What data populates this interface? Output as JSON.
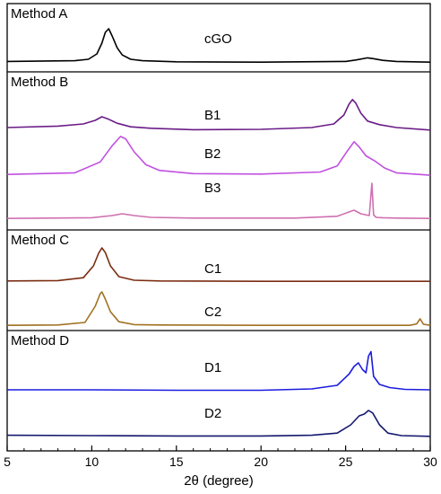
{
  "chart_data": {
    "type": "line",
    "xlabel": "2θ (degree)",
    "xlim": [
      5,
      30
    ],
    "xticks": [
      5,
      10,
      15,
      20,
      25,
      30
    ],
    "tick_labels": [
      "5",
      "10",
      "15",
      "20",
      "25",
      "30"
    ],
    "panels": [
      {
        "label": "Method A",
        "traces": [
          {
            "label": "cGO",
            "color": "#000000",
            "baseline": 0.02,
            "x": [
              5,
              9,
              9.8,
              10.3,
              10.6,
              10.8,
              11.0,
              11.2,
              11.5,
              11.8,
              12.3,
              13,
              15,
              20,
              25,
              25.6,
              26.3,
              26.6,
              27.2,
              28,
              30
            ],
            "y": [
              0.04,
              0.06,
              0.1,
              0.25,
              0.55,
              0.85,
              0.95,
              0.75,
              0.42,
              0.22,
              0.1,
              0.06,
              0.03,
              0.02,
              0.04,
              0.08,
              0.14,
              0.12,
              0.07,
              0.04,
              0.02
            ]
          }
        ]
      },
      {
        "label": "Method B",
        "traces": [
          {
            "label": "B1",
            "color": "#6a1c87",
            "baseline": 0.05,
            "x": [
              5,
              8,
              9.5,
              10.2,
              10.6,
              11.0,
              11.5,
              12.3,
              13.5,
              16,
              20,
              23,
              24.3,
              24.9,
              25.2,
              25.4,
              25.6,
              25.9,
              26.3,
              27,
              28,
              30
            ],
            "y": [
              0.1,
              0.14,
              0.2,
              0.3,
              0.4,
              0.33,
              0.22,
              0.12,
              0.08,
              0.04,
              0.05,
              0.1,
              0.2,
              0.45,
              0.75,
              0.88,
              0.78,
              0.5,
              0.28,
              0.18,
              0.1,
              0.03
            ]
          },
          {
            "label": "B2",
            "color": "#c050e0",
            "baseline": 0.0,
            "x": [
              5,
              9,
              10.5,
              11.2,
              11.7,
              12.0,
              12.5,
              13.2,
              14,
              16,
              20,
              23.5,
              24.5,
              25.1,
              25.5,
              25.8,
              26.2,
              26.7,
              27.3,
              28,
              30
            ],
            "y": [
              0.04,
              0.08,
              0.35,
              0.75,
              0.98,
              0.92,
              0.6,
              0.28,
              0.14,
              0.06,
              0.05,
              0.1,
              0.25,
              0.62,
              0.85,
              0.72,
              0.5,
              0.38,
              0.2,
              0.08,
              0.02
            ]
          },
          {
            "label": "B3",
            "color": "#d070b0",
            "baseline": 0.0,
            "x": [
              5,
              10,
              11.2,
              11.8,
              12.5,
              13.5,
              16,
              22,
              24.5,
              25.2,
              25.5,
              25.9,
              26.4,
              26.55,
              26.65,
              26.8,
              27.2,
              28,
              30
            ],
            "y": [
              0.02,
              0.04,
              0.1,
              0.15,
              0.1,
              0.05,
              0.03,
              0.03,
              0.08,
              0.2,
              0.25,
              0.15,
              0.1,
              1.0,
              0.12,
              0.05,
              0.04,
              0.03,
              0.02
            ]
          }
        ]
      },
      {
        "label": "Method C",
        "traces": [
          {
            "label": "C1",
            "color": "#7a2c10",
            "baseline": 0.0,
            "x": [
              5,
              8,
              9.5,
              10.1,
              10.4,
              10.6,
              10.8,
              11.1,
              11.6,
              12.5,
              14,
              20,
              30
            ],
            "y": [
              0.03,
              0.04,
              0.12,
              0.45,
              0.8,
              0.95,
              0.82,
              0.45,
              0.15,
              0.05,
              0.03,
              0.02,
              0.02
            ]
          },
          {
            "label": "C2",
            "color": "#a07020",
            "baseline": 0.0,
            "x": [
              5,
              8,
              9.6,
              10.2,
              10.5,
              10.6,
              10.8,
              11.1,
              11.6,
              12.5,
              14,
              20,
              28.8,
              29.2,
              29.4,
              29.6,
              30
            ],
            "y": [
              0.02,
              0.03,
              0.1,
              0.55,
              0.9,
              0.95,
              0.75,
              0.4,
              0.12,
              0.04,
              0.03,
              0.02,
              0.02,
              0.06,
              0.2,
              0.05,
              0.02
            ]
          }
        ]
      },
      {
        "label": "Method D",
        "traces": [
          {
            "label": "D1",
            "color": "#1c1ce0",
            "baseline": 0.05,
            "x": [
              5,
              10,
              15,
              20,
              23,
              24.5,
              25.2,
              25.5,
              25.75,
              26.0,
              26.2,
              26.35,
              26.5,
              26.65,
              27.0,
              27.6,
              28.5,
              30
            ],
            "y": [
              0.1,
              0.1,
              0.09,
              0.09,
              0.12,
              0.2,
              0.45,
              0.62,
              0.7,
              0.55,
              0.48,
              0.85,
              0.95,
              0.4,
              0.22,
              0.15,
              0.11,
              0.1
            ]
          },
          {
            "label": "D2",
            "color": "#14186e",
            "baseline": 0.0,
            "x": [
              5,
              10,
              15,
              20,
              23,
              24.5,
              25.3,
              25.8,
              26.1,
              26.35,
              26.6,
              27.0,
              27.5,
              28.3,
              30
            ],
            "y": [
              0.06,
              0.05,
              0.04,
              0.04,
              0.06,
              0.12,
              0.35,
              0.6,
              0.65,
              0.75,
              0.68,
              0.35,
              0.12,
              0.05,
              0.03
            ]
          }
        ]
      }
    ]
  }
}
